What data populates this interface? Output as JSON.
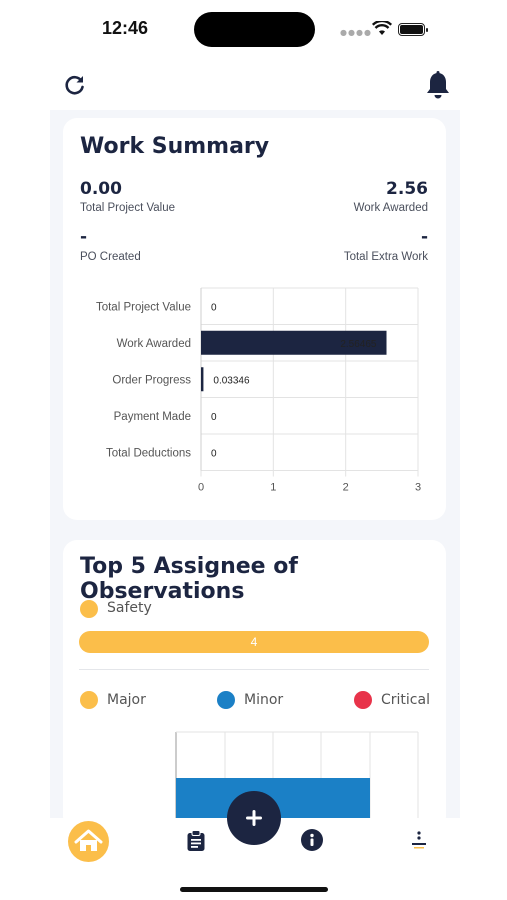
{
  "status": {
    "time": "12:46"
  },
  "work_summary": {
    "title": "Work Summary",
    "total_project_value": {
      "value": "0.00",
      "label": "Total Project Value"
    },
    "work_awarded": {
      "value": "2.56",
      "label": "Work Awarded"
    },
    "po_created": {
      "value": "-",
      "label": "PO Created"
    },
    "total_extra_work": {
      "value": "-",
      "label": "Total Extra Work"
    }
  },
  "chart_data": {
    "type": "bar",
    "orientation": "horizontal",
    "categories": [
      "Total Project Value",
      "Work Awarded",
      "Order Progress",
      "Payment Made",
      "Total Deductions"
    ],
    "values": [
      0,
      2.56465,
      0.03346,
      0,
      0
    ],
    "value_labels": [
      "0",
      "2.56465",
      "0.03346",
      "0",
      "0"
    ],
    "xlim": [
      0,
      3
    ],
    "xticks": [
      "0",
      "1",
      "2",
      "3"
    ],
    "grid": true,
    "bar_color": "#1c2541"
  },
  "observations": {
    "title": "Top 5 Assignee of Observations",
    "safety_legend": "Safety",
    "safety_value": "4",
    "legend": [
      {
        "label": "Major",
        "color": "#fbbe4a"
      },
      {
        "label": "Minor",
        "color": "#1b80c6"
      },
      {
        "label": "Critical",
        "color": "#e8334a"
      }
    ],
    "chart_color": "#1b80c6"
  },
  "nav": {
    "items": [
      "home-icon",
      "clipboard-icon",
      "add-icon",
      "info-icon",
      "more-icon"
    ]
  },
  "colors": {
    "accent": "#fbbe4a",
    "primary": "#1c2541"
  }
}
